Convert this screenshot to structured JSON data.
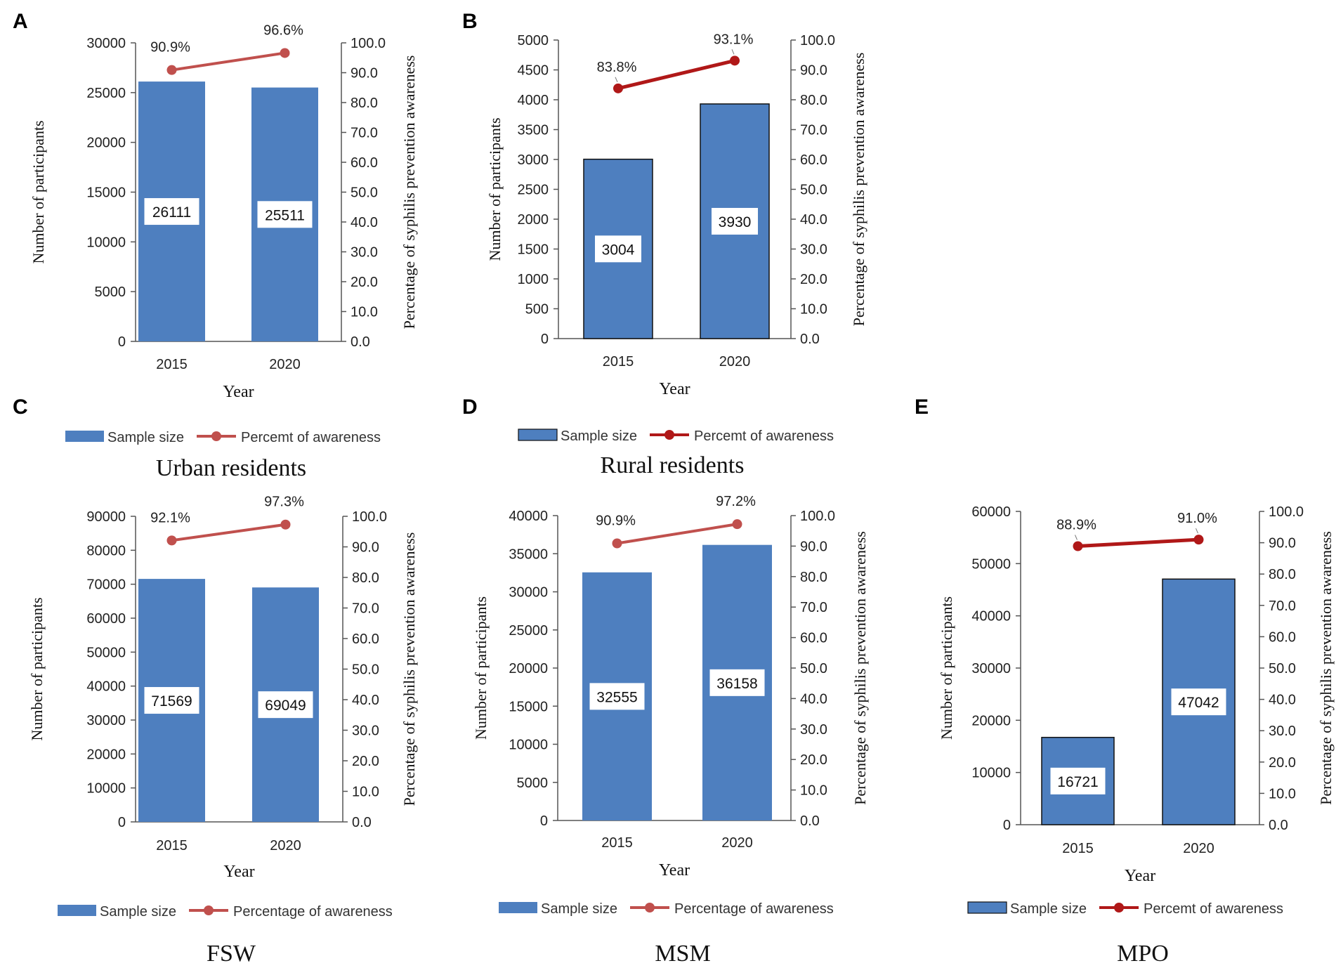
{
  "colors": {
    "bar": "#4e7fbf",
    "line_light": "#c0504d",
    "line_dark": "#b01818",
    "axis": "#555555"
  },
  "chart_data": [
    {
      "id": "A",
      "type": "bar+line",
      "title": "Urban residents",
      "categories": [
        "2015",
        "2020"
      ],
      "xlabel": "Year",
      "ylabel": "Number of participants",
      "y2label": "Percentage of syphilis prevention awareness",
      "ylim": [
        0,
        30000
      ],
      "yticks": [
        "0",
        "5000",
        "10000",
        "15000",
        "20000",
        "25000",
        "30000"
      ],
      "y2lim": [
        0,
        100
      ],
      "y2ticks": [
        "0.0",
        "10.0",
        "20.0",
        "30.0",
        "40.0",
        "50.0",
        "60.0",
        "70.0",
        "80.0",
        "90.0",
        "100.0"
      ],
      "series": [
        {
          "name": "Sample size",
          "kind": "bar",
          "values": [
            26111,
            25511
          ],
          "labels": [
            "26111",
            "25511"
          ]
        },
        {
          "name": "Percemt of awareness",
          "kind": "line",
          "values": [
            90.9,
            96.6
          ],
          "labels": [
            "90.9%",
            "96.6%"
          ]
        }
      ],
      "legend": [
        "Sample size",
        "Percemt of awareness"
      ],
      "style": "light"
    },
    {
      "id": "B",
      "type": "bar+line",
      "title": "Rural residents",
      "categories": [
        "2015",
        "2020"
      ],
      "xlabel": "Year",
      "ylabel": "Number of participants",
      "y2label": "Percentage of syphilis prevention awareness",
      "ylim": [
        0,
        5000
      ],
      "yticks": [
        "0",
        "500",
        "1000",
        "1500",
        "2000",
        "2500",
        "3000",
        "3500",
        "4000",
        "4500",
        "5000"
      ],
      "y2lim": [
        0,
        100
      ],
      "y2ticks": [
        "0.0",
        "10.0",
        "20.0",
        "30.0",
        "40.0",
        "50.0",
        "60.0",
        "70.0",
        "80.0",
        "90.0",
        "100.0"
      ],
      "series": [
        {
          "name": "Sample size",
          "kind": "bar",
          "values": [
            3004,
            3930
          ],
          "labels": [
            "3004",
            "3930"
          ]
        },
        {
          "name": "Percemt of awareness",
          "kind": "line",
          "values": [
            83.8,
            93.1
          ],
          "labels": [
            "83.8%",
            "93.1%"
          ]
        }
      ],
      "legend": [
        "Sample size",
        "Percemt of awareness"
      ],
      "style": "dark"
    },
    {
      "id": "C",
      "type": "bar+line",
      "title": "FSW",
      "categories": [
        "2015",
        "2020"
      ],
      "xlabel": "Year",
      "ylabel": "Number of participants",
      "y2label": "Percentage of syphilis prevention awareness",
      "ylim": [
        0,
        90000
      ],
      "yticks": [
        "0",
        "10000",
        "20000",
        "30000",
        "40000",
        "50000",
        "60000",
        "70000",
        "80000",
        "90000"
      ],
      "y2lim": [
        0,
        100
      ],
      "y2ticks": [
        "0.0",
        "10.0",
        "20.0",
        "30.0",
        "40.0",
        "50.0",
        "60.0",
        "70.0",
        "80.0",
        "90.0",
        "100.0"
      ],
      "series": [
        {
          "name": "Sample size",
          "kind": "bar",
          "values": [
            71569,
            69049
          ],
          "labels": [
            "71569",
            "69049"
          ]
        },
        {
          "name": "Percentage of awareness",
          "kind": "line",
          "values": [
            92.1,
            97.3
          ],
          "labels": [
            "92.1%",
            "97.3%"
          ]
        }
      ],
      "legend": [
        "Sample size",
        "Percentage of awareness"
      ],
      "style": "light"
    },
    {
      "id": "D",
      "type": "bar+line",
      "title": "MSM",
      "categories": [
        "2015",
        "2020"
      ],
      "xlabel": "Year",
      "ylabel": "Number of participants",
      "y2label": "Percentage of syphilis prevention awareness",
      "ylim": [
        0,
        40000
      ],
      "yticks": [
        "0",
        "5000",
        "10000",
        "15000",
        "20000",
        "25000",
        "30000",
        "35000",
        "40000"
      ],
      "y2lim": [
        0,
        100
      ],
      "y2ticks": [
        "0.0",
        "10.0",
        "20.0",
        "30.0",
        "40.0",
        "50.0",
        "60.0",
        "70.0",
        "80.0",
        "90.0",
        "100.0"
      ],
      "series": [
        {
          "name": "Sample size",
          "kind": "bar",
          "values": [
            32555,
            36158
          ],
          "labels": [
            "32555",
            "36158"
          ]
        },
        {
          "name": "Percentage of awareness",
          "kind": "line",
          "values": [
            90.9,
            97.2
          ],
          "labels": [
            "90.9%",
            "97.2%"
          ]
        }
      ],
      "legend": [
        "Sample size",
        "Percentage of awareness"
      ],
      "style": "light"
    },
    {
      "id": "E",
      "type": "bar+line",
      "title": "MPO",
      "categories": [
        "2015",
        "2020"
      ],
      "xlabel": "Year",
      "ylabel": "Number of participants",
      "y2label": "Percentage of syphilis prevention awareness",
      "ylim": [
        0,
        60000
      ],
      "yticks": [
        "0",
        "10000",
        "20000",
        "30000",
        "40000",
        "50000",
        "60000"
      ],
      "y2lim": [
        0,
        100
      ],
      "y2ticks": [
        "0.0",
        "10.0",
        "20.0",
        "30.0",
        "40.0",
        "50.0",
        "60.0",
        "70.0",
        "80.0",
        "90.0",
        "100.0"
      ],
      "series": [
        {
          "name": "Sample size",
          "kind": "bar",
          "values": [
            16721,
            47042
          ],
          "labels": [
            "16721",
            "47042"
          ]
        },
        {
          "name": "Percemt of awareness",
          "kind": "line",
          "values": [
            88.9,
            91.0
          ],
          "labels": [
            "88.9%",
            "91.0%"
          ]
        }
      ],
      "legend": [
        "Sample size",
        "Percemt of awareness"
      ],
      "style": "dark"
    }
  ]
}
